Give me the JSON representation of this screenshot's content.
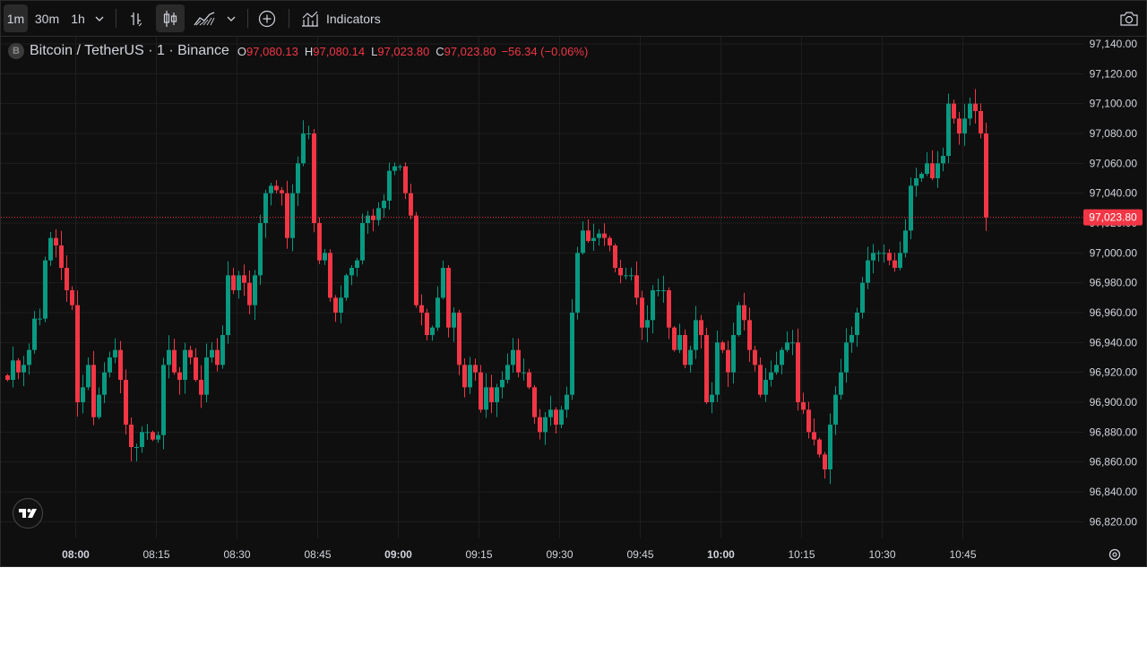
{
  "toolbar": {
    "intervals": [
      {
        "label": "1m",
        "active": true
      },
      {
        "label": "30m",
        "active": false
      },
      {
        "label": "1h",
        "active": false
      }
    ],
    "indicators_label": "Indicators",
    "chart_style_active": "candles"
  },
  "legend": {
    "symbol_badge": "B",
    "symbol_title": "Bitcoin / TetherUS · 1 · Binance",
    "o_key": "O",
    "o_val": "97,080.13",
    "h_key": "H",
    "h_val": "97,080.14",
    "l_key": "L",
    "l_val": "97,023.80",
    "c_key": "C",
    "c_val": "97,023.80",
    "change": "−56.34 (−0.06%)"
  },
  "colors": {
    "up": "#089981",
    "down": "#f23645",
    "background": "#0f0f0f",
    "grid": "#1e1e1e",
    "text": "#d1d4dc"
  },
  "chart_data": {
    "type": "candlestick",
    "symbol": "BTCUSDT",
    "interval": "1m",
    "exchange": "Binance",
    "last_price": 97023.8,
    "last_price_label": "97,023.80",
    "y_ticks": [
      97140,
      97120,
      97100,
      97080,
      97060,
      97040,
      97020,
      97000,
      96980,
      96960,
      96940,
      96920,
      96900,
      96880,
      96860,
      96840,
      96820
    ],
    "y_tick_labels": [
      "97,140.00",
      "97,120.00",
      "97,100.00",
      "97,080.00",
      "97,060.00",
      "97,040.00",
      "97,020.00",
      "97,000.00",
      "96,980.00",
      "96,960.00",
      "96,940.00",
      "96,920.00",
      "96,900.00",
      "96,880.00",
      "96,860.00",
      "96,840.00",
      "96,820.00"
    ],
    "x_ticks": [
      {
        "label": "08:00",
        "bold": true
      },
      {
        "label": "08:15",
        "bold": false
      },
      {
        "label": "08:30",
        "bold": false
      },
      {
        "label": "08:45",
        "bold": false
      },
      {
        "label": "09:00",
        "bold": true
      },
      {
        "label": "09:15",
        "bold": false
      },
      {
        "label": "09:30",
        "bold": false
      },
      {
        "label": "09:45",
        "bold": false
      },
      {
        "label": "10:00",
        "bold": true
      },
      {
        "label": "10:15",
        "bold": false
      },
      {
        "label": "10:30",
        "bold": false
      },
      {
        "label": "10:45",
        "bold": false
      }
    ],
    "ylim": [
      96810,
      97145
    ],
    "start_time": "07:47",
    "close_series": [
      96915,
      96928,
      96920,
      96925,
      96935,
      96956,
      96956,
      96995,
      97010,
      97005,
      96990,
      96975,
      96965,
      96900,
      96910,
      96925,
      96890,
      96905,
      96920,
      96930,
      96935,
      96915,
      96885,
      96870,
      96870,
      96880,
      96880,
      96875,
      96878,
      96925,
      96935,
      96920,
      96915,
      96935,
      96930,
      96915,
      96905,
      96930,
      96935,
      96925,
      96945,
      96985,
      96975,
      96985,
      96980,
      96965,
      96985,
      97020,
      97040,
      97045,
      97042,
      97040,
      97010,
      97040,
      97060,
      97080,
      97080,
      97020,
      96995,
      97000,
      96970,
      96960,
      96970,
      96985,
      96990,
      96995,
      97020,
      97025,
      97022,
      97030,
      97035,
      97055,
      97058,
      97058,
      97040,
      97025,
      96965,
      96960,
      96945,
      96950,
      96970,
      96990,
      96950,
      96960,
      96925,
      96910,
      96925,
      96920,
      96895,
      96910,
      96900,
      96910,
      96915,
      96925,
      96935,
      96920,
      96920,
      96910,
      96890,
      96880,
      96890,
      96895,
      96885,
      96895,
      96905,
      96960,
      97000,
      97015,
      97008,
      97010,
      97013,
      97010,
      97005,
      96990,
      96985,
      96985,
      96985,
      96970,
      96950,
      96955,
      96975,
      96975,
      96975,
      96950,
      96935,
      96945,
      96925,
      96935,
      96955,
      96945,
      96900,
      96905,
      96940,
      96935,
      96920,
      96945,
      96965,
      96955,
      96935,
      96925,
      96905,
      96915,
      96920,
      96925,
      96935,
      96940,
      96940,
      96900,
      96895,
      96880,
      96875,
      96865,
      96855,
      96885,
      96905,
      96920,
      96940,
      96945,
      96960,
      96980,
      96995,
      97000,
      97000,
      97000,
      96995,
      96990,
      97000,
      97015,
      97045,
      97050,
      97053,
      97060,
      97050,
      97060,
      97065,
      97100,
      97090,
      97080,
      97090,
      97100,
      97095,
      97080,
      97023.8
    ]
  }
}
